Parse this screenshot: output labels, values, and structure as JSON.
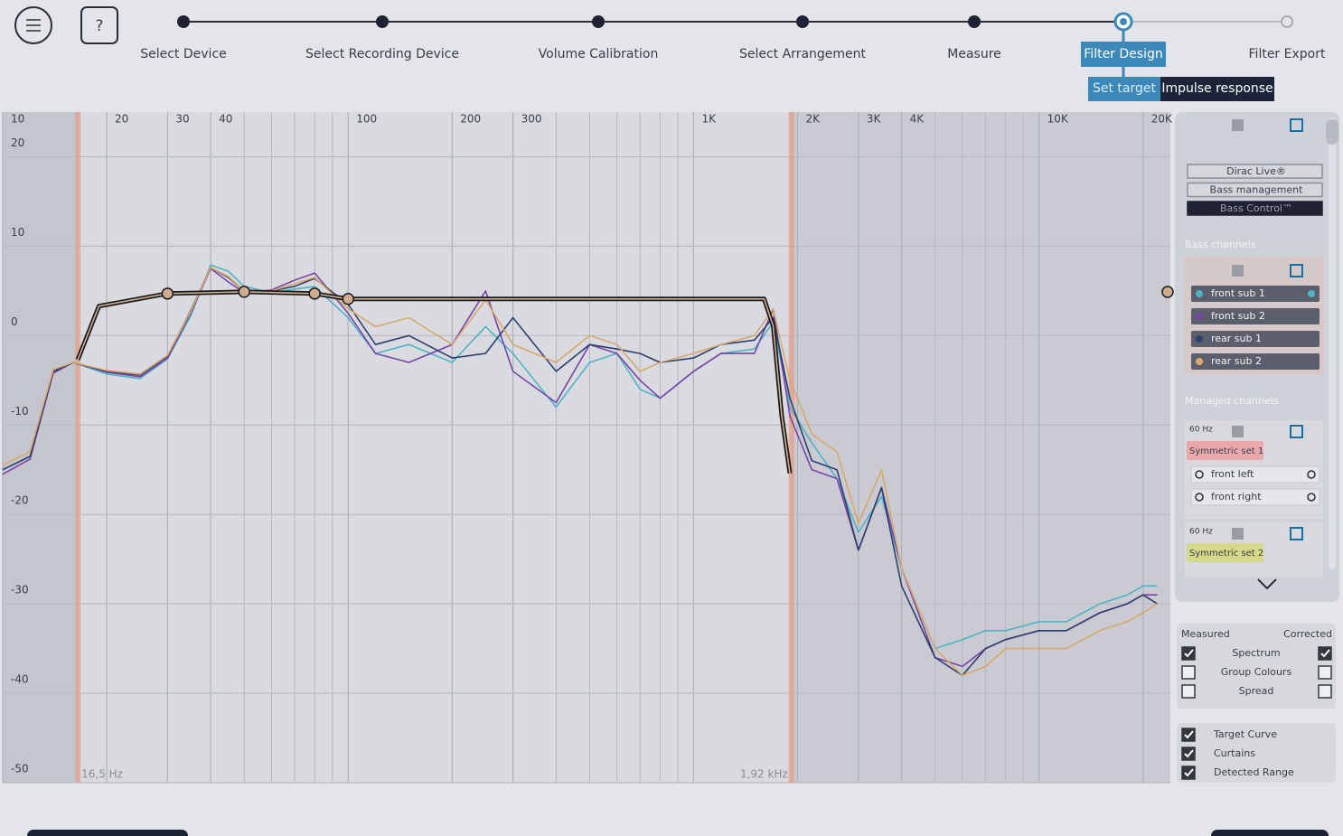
{
  "header": {
    "steps": [
      "Select Device",
      "Select Recording Device",
      "Volume Calibration",
      "Select Arrangement",
      "Measure",
      "Filter Design",
      "Filter Export"
    ],
    "active_step": 5,
    "help": "?",
    "tabs": [
      "Set target",
      "Impulse response"
    ],
    "active_tab": 0
  },
  "chart_data": {
    "type": "line",
    "log_x": true,
    "grid": true,
    "xlim": [
      10,
      24000
    ],
    "ylim": [
      -50,
      25
    ],
    "xticks": [
      10,
      20,
      30,
      40,
      100,
      200,
      300,
      {
        "value": 1000,
        "label": "1K"
      },
      {
        "value": 2000,
        "label": "2K"
      },
      {
        "value": 3000,
        "label": "3K"
      },
      {
        "value": 4000,
        "label": "4K"
      },
      {
        "value": 10000,
        "label": "10K"
      },
      {
        "value": 20000,
        "label": "20K"
      }
    ],
    "x_minor_ticks": [
      50,
      60,
      70,
      80,
      90,
      400,
      500,
      600,
      700,
      800,
      900,
      5000,
      6000,
      7000,
      8000,
      9000
    ],
    "yticks": [
      -50,
      -40,
      -30,
      -20,
      -10,
      0,
      10,
      20
    ],
    "curtains": [
      {
        "value": 16.5,
        "label": "16,5 Hz"
      },
      {
        "value": 1920,
        "label": "1,92 kHz"
      }
    ],
    "x": [
      10,
      12,
      14,
      16,
      20,
      25,
      30,
      35,
      40,
      45,
      50,
      60,
      70,
      80,
      100,
      120,
      150,
      200,
      250,
      300,
      400,
      500,
      600,
      700,
      800,
      1000,
      1200,
      1500,
      1700,
      1900,
      2200,
      2600,
      3000,
      3500,
      4000,
      5000,
      6000,
      7000,
      8000,
      10000,
      12000,
      15000,
      18000,
      20000,
      22000
    ],
    "series": [
      {
        "name": "front sub 1",
        "color": "#4fb3c4",
        "values": [
          -15,
          -13.5,
          -4,
          -3,
          -4.3,
          -4.8,
          -2.6,
          2.2,
          7.9,
          7.2,
          5.5,
          4.8,
          5.2,
          5.5,
          2,
          -2,
          -1,
          -3,
          1,
          -2,
          -8,
          -3,
          -2,
          -6,
          -7,
          -4,
          -2,
          -1.5,
          1.5,
          -8,
          -12,
          -16,
          -22,
          -18,
          -26,
          -35,
          -34,
          -33,
          -33,
          -32,
          -32,
          -30,
          -29,
          -28,
          -28
        ]
      },
      {
        "name": "front sub 2",
        "color": "#7b44a8",
        "values": [
          -15.5,
          -13.8,
          -4.2,
          -3,
          -4.1,
          -4.6,
          -2.5,
          2.5,
          7.5,
          6,
          4.8,
          5.1,
          6.2,
          7,
          2.5,
          -2,
          -3,
          -1,
          5,
          -4,
          -7.5,
          -1,
          -2,
          -5,
          -7,
          -4,
          -2,
          -2,
          3,
          -9,
          -15,
          -16,
          -24,
          -17,
          -26,
          -36,
          -37,
          -35,
          -34,
          -33,
          -33,
          -31,
          -30,
          -29,
          -29
        ]
      },
      {
        "name": "rear sub 1",
        "color": "#2d3f6e",
        "values": [
          -15,
          -13.5,
          -4,
          -3,
          -4,
          -4.4,
          -2.3,
          2.8,
          7.6,
          6.5,
          5,
          5,
          5.5,
          6.4,
          3.5,
          -1,
          0,
          -2.5,
          -2,
          2,
          -4,
          -1,
          -1.5,
          -2,
          -3,
          -2.5,
          -1,
          -0.5,
          2,
          -7,
          -14,
          -15,
          -24,
          -17,
          -28,
          -36,
          -38,
          -35,
          -34,
          -33,
          -33,
          -31,
          -30,
          -29,
          -30
        ]
      },
      {
        "name": "rear sub 2",
        "color": "#d8a86c",
        "values": [
          -14.5,
          -13,
          -3.8,
          -3,
          -3.9,
          -4.3,
          -2.2,
          2.7,
          7.6,
          6.6,
          5,
          5,
          5.8,
          6.5,
          3,
          1,
          2,
          -1,
          4,
          -1,
          -3,
          0,
          -1,
          -4,
          -3,
          -2,
          -1,
          0,
          3,
          -5,
          -11,
          -13,
          -21,
          -15,
          -26,
          -35,
          -38,
          -37,
          -35,
          -35,
          -35,
          -33,
          -32,
          -31,
          -30
        ]
      }
    ],
    "target": {
      "color": "#1b1b1b",
      "x": [
        16.5,
        19,
        30,
        50,
        80,
        100,
        1600,
        1700,
        1800,
        1900
      ],
      "values": [
        -2.7,
        3.3,
        4.7,
        4.9,
        4.7,
        4.1,
        4.1,
        1.1,
        -9,
        -15.4
      ]
    },
    "handles": {
      "x": [
        30,
        50,
        80,
        100
      ],
      "values": [
        4.7,
        4.9,
        4.7,
        4.1
      ]
    }
  },
  "panel": {
    "modes": [
      "Dirac Live®",
      "Bass management",
      "Bass Control™"
    ],
    "selected_mode": 2,
    "bass_header": "Bass channels",
    "managed_header": "Managed channels",
    "groups": [
      {
        "freq": "60 Hz",
        "name": "Symmetric set 1",
        "color": "#e9a9aa",
        "channels": [
          "front left",
          "front right"
        ]
      },
      {
        "freq": "60 Hz",
        "name": "Symmetric set 2",
        "color": "#d6d88a",
        "channels": []
      }
    ]
  },
  "options": {
    "measured": "Measured",
    "corrected": "Corrected",
    "rows": [
      {
        "label": "Spectrum",
        "measured": true,
        "corrected": true
      },
      {
        "label": "Group Colours",
        "measured": false,
        "corrected": false
      },
      {
        "label": "Spread",
        "measured": false,
        "corrected": false
      }
    ],
    "toggles": [
      {
        "label": "Target Curve",
        "checked": true
      },
      {
        "label": "Curtains",
        "checked": true
      },
      {
        "label": "Detected Range",
        "checked": true
      }
    ]
  }
}
